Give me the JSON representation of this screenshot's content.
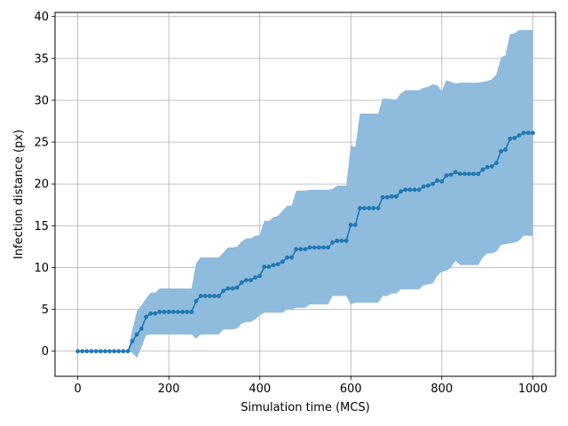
{
  "chart_data": {
    "type": "line",
    "xlabel": "Simulation time (MCS)",
    "ylabel": "Infection distance (px)",
    "xlim": [
      -50,
      1050
    ],
    "ylim": [
      -3,
      40.5
    ],
    "xticks": [
      0,
      200,
      400,
      600,
      800,
      1000
    ],
    "yticks": [
      0,
      5,
      10,
      15,
      20,
      25,
      30,
      35,
      40
    ],
    "grid": true,
    "colors": {
      "line": "#1f77b4",
      "band": "#8fbbdc",
      "grid": "#b0b0b0"
    },
    "series": [
      {
        "x": [
          0,
          10,
          20,
          30,
          40,
          50,
          60,
          70,
          80,
          90,
          100,
          110,
          120,
          130,
          140,
          150,
          160,
          170,
          180,
          190,
          200,
          210,
          220,
          230,
          240,
          250,
          260,
          270,
          280,
          290,
          300,
          310,
          320,
          330,
          340,
          350,
          360,
          370,
          380,
          390,
          400,
          410,
          420,
          430,
          440,
          450,
          460,
          470,
          480,
          490,
          500,
          510,
          520,
          530,
          540,
          550,
          560,
          570,
          580,
          590,
          600,
          610,
          620,
          630,
          640,
          650,
          660,
          670,
          680,
          690,
          700,
          710,
          720,
          730,
          740,
          750,
          760,
          770,
          780,
          790,
          800,
          810,
          820,
          830,
          840,
          850,
          860,
          870,
          880,
          890,
          900,
          910,
          920,
          930,
          940,
          950,
          960,
          970,
          980,
          990,
          1000
        ],
        "y": [
          0,
          0,
          0,
          0,
          0,
          0,
          0,
          0,
          0,
          0,
          0,
          0,
          1.2,
          2.0,
          2.7,
          4.1,
          4.5,
          4.5,
          4.7,
          4.7,
          4.7,
          4.7,
          4.7,
          4.7,
          4.7,
          4.7,
          6.0,
          6.6,
          6.6,
          6.6,
          6.6,
          6.6,
          7.2,
          7.5,
          7.5,
          7.6,
          8.2,
          8.5,
          8.5,
          8.8,
          9.0,
          10.1,
          10.1,
          10.3,
          10.4,
          10.7,
          11.2,
          11.2,
          12.2,
          12.2,
          12.2,
          12.4,
          12.4,
          12.4,
          12.4,
          12.4,
          13.0,
          13.2,
          13.2,
          13.2,
          15.1,
          15.1,
          17.1,
          17.1,
          17.1,
          17.1,
          17.1,
          18.4,
          18.4,
          18.5,
          18.5,
          19.1,
          19.3,
          19.3,
          19.3,
          19.3,
          19.7,
          19.8,
          20.0,
          20.4,
          20.3,
          21.0,
          21.1,
          21.4,
          21.2,
          21.2,
          21.2,
          21.2,
          21.2,
          21.7,
          22.0,
          22.1,
          22.5,
          23.9,
          24.1,
          25.4,
          25.5,
          25.8,
          26.1,
          26.1,
          26.1
        ],
        "lower": [
          0,
          0,
          0,
          0,
          0,
          0,
          0,
          0,
          0,
          0,
          0,
          0,
          -0.2,
          -0.8,
          0.5,
          1.9,
          2.0,
          2.0,
          2.0,
          2.0,
          2.0,
          2.0,
          2.0,
          2.0,
          2.0,
          2.0,
          1.5,
          2.0,
          2.0,
          2.0,
          2.0,
          2.0,
          2.6,
          2.6,
          2.6,
          2.7,
          3.3,
          3.5,
          3.5,
          3.8,
          4.3,
          4.6,
          4.6,
          4.6,
          4.6,
          4.6,
          5.0,
          5.0,
          5.2,
          5.2,
          5.2,
          5.6,
          5.6,
          5.6,
          5.6,
          5.6,
          6.6,
          6.6,
          6.6,
          6.6,
          5.6,
          5.8,
          5.8,
          5.8,
          5.8,
          5.8,
          5.8,
          6.6,
          6.6,
          6.9,
          6.9,
          7.4,
          7.4,
          7.4,
          7.4,
          7.4,
          7.9,
          8.0,
          8.1,
          9.0,
          9.5,
          9.6,
          10.0,
          10.8,
          10.3,
          10.3,
          10.3,
          10.3,
          10.3,
          11.2,
          11.7,
          11.7,
          11.9,
          12.7,
          12.8,
          12.9,
          13.0,
          13.2,
          13.8,
          13.8,
          13.8
        ],
        "upper": [
          0,
          0,
          0,
          0,
          0,
          0,
          0,
          0,
          0,
          0,
          0,
          0,
          2.6,
          4.8,
          5.5,
          6.3,
          7.0,
          7.0,
          7.5,
          7.5,
          7.5,
          7.5,
          7.5,
          7.5,
          7.5,
          7.5,
          10.5,
          11.2,
          11.2,
          11.2,
          11.2,
          11.2,
          11.8,
          12.4,
          12.4,
          12.5,
          13.1,
          13.5,
          13.5,
          13.8,
          13.9,
          15.6,
          15.6,
          16.0,
          16.2,
          16.8,
          17.4,
          17.4,
          19.2,
          19.2,
          19.2,
          19.3,
          19.3,
          19.3,
          19.3,
          19.3,
          19.4,
          19.8,
          19.8,
          19.8,
          24.6,
          24.4,
          28.4,
          28.4,
          28.4,
          28.4,
          28.4,
          30.2,
          30.2,
          30.1,
          30.1,
          30.8,
          31.2,
          31.2,
          31.2,
          31.2,
          31.5,
          31.6,
          31.9,
          31.8,
          31.1,
          32.4,
          32.2,
          32.0,
          32.1,
          32.1,
          32.1,
          32.1,
          32.1,
          32.2,
          32.3,
          32.5,
          33.1,
          35.1,
          35.4,
          37.9,
          38.0,
          38.4,
          38.4,
          38.4,
          38.4
        ]
      }
    ]
  }
}
